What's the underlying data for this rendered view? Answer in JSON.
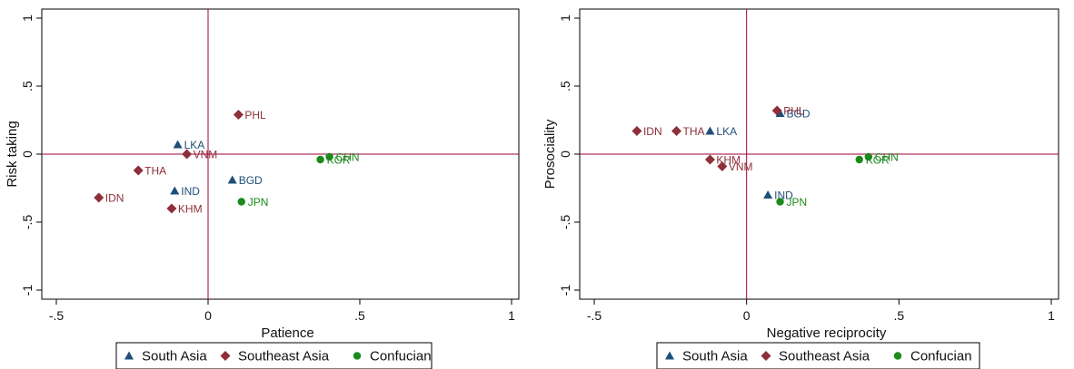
{
  "colors": {
    "South Asia": "#1f4e79",
    "Southeast Asia": "#8e2f3a",
    "Confucian": "#1a8a1a",
    "refline": "#a0003a"
  },
  "legend": [
    "South Asia",
    "Southeast Asia",
    "Confucian"
  ],
  "markers": {
    "South Asia": "triangle",
    "Southeast Asia": "diamond",
    "Confucian": "circle"
  },
  "chart_data": [
    {
      "type": "scatter",
      "xlabel": "Patience",
      "ylabel": "Risk taking",
      "xlim": [
        -0.5,
        1
      ],
      "ylim": [
        -1,
        1
      ],
      "xticks": [
        {
          "v": -0.5,
          "t": "-.5"
        },
        {
          "v": 0,
          "t": "0"
        },
        {
          "v": 0.5,
          "t": ".5"
        },
        {
          "v": 1,
          "t": "1"
        }
      ],
      "yticks": [
        {
          "v": -1,
          "t": "-1"
        },
        {
          "v": -0.5,
          "t": "-.5"
        },
        {
          "v": 0,
          "t": "0"
        },
        {
          "v": 0.5,
          "t": ".5"
        },
        {
          "v": 1,
          "t": "1"
        }
      ],
      "reference_lines": {
        "x": 0,
        "y": 0
      },
      "points": [
        {
          "label": "LKA",
          "group": "South Asia",
          "x": -0.1,
          "y": 0.07
        },
        {
          "label": "IND",
          "group": "South Asia",
          "x": -0.11,
          "y": -0.27
        },
        {
          "label": "BGD",
          "group": "South Asia",
          "x": 0.08,
          "y": -0.19
        },
        {
          "label": "PHL",
          "group": "Southeast Asia",
          "x": 0.1,
          "y": 0.29
        },
        {
          "label": "VNM",
          "group": "Southeast Asia",
          "x": -0.07,
          "y": 0.0
        },
        {
          "label": "THA",
          "group": "Southeast Asia",
          "x": -0.23,
          "y": -0.12
        },
        {
          "label": "IDN",
          "group": "Southeast Asia",
          "x": -0.36,
          "y": -0.32
        },
        {
          "label": "KHM",
          "group": "Southeast Asia",
          "x": -0.12,
          "y": -0.4
        },
        {
          "label": "CHN",
          "group": "Confucian",
          "x": 0.4,
          "y": -0.02
        },
        {
          "label": "KOR",
          "group": "Confucian",
          "x": 0.37,
          "y": -0.04
        },
        {
          "label": "JPN",
          "group": "Confucian",
          "x": 0.11,
          "y": -0.35
        }
      ]
    },
    {
      "type": "scatter",
      "xlabel": "Negative reciprocity",
      "ylabel": "Prosociality",
      "xlim": [
        -0.5,
        1
      ],
      "ylim": [
        -1,
        1
      ],
      "xticks": [
        {
          "v": -0.5,
          "t": "-.5"
        },
        {
          "v": 0,
          "t": "0"
        },
        {
          "v": 0.5,
          "t": ".5"
        },
        {
          "v": 1,
          "t": "1"
        }
      ],
      "yticks": [
        {
          "v": -1,
          "t": "-1"
        },
        {
          "v": -0.5,
          "t": "-.5"
        },
        {
          "v": 0,
          "t": "0"
        },
        {
          "v": 0.5,
          "t": ".5"
        },
        {
          "v": 1,
          "t": "1"
        }
      ],
      "reference_lines": {
        "x": 0,
        "y": 0
      },
      "points": [
        {
          "label": "LKA",
          "group": "South Asia",
          "x": -0.12,
          "y": 0.17
        },
        {
          "label": "BGD",
          "group": "South Asia",
          "x": 0.11,
          "y": 0.3
        },
        {
          "label": "IND",
          "group": "South Asia",
          "x": 0.07,
          "y": -0.3
        },
        {
          "label": "PHL",
          "group": "Southeast Asia",
          "x": 0.1,
          "y": 0.32
        },
        {
          "label": "IDN",
          "group": "Southeast Asia",
          "x": -0.36,
          "y": 0.17
        },
        {
          "label": "THA",
          "group": "Southeast Asia",
          "x": -0.23,
          "y": 0.17
        },
        {
          "label": "KHM",
          "group": "Southeast Asia",
          "x": -0.12,
          "y": -0.04
        },
        {
          "label": "VNM",
          "group": "Southeast Asia",
          "x": -0.08,
          "y": -0.09
        },
        {
          "label": "CHN",
          "group": "Confucian",
          "x": 0.4,
          "y": -0.02
        },
        {
          "label": "KOR",
          "group": "Confucian",
          "x": 0.37,
          "y": -0.04
        },
        {
          "label": "JPN",
          "group": "Confucian",
          "x": 0.11,
          "y": -0.35
        }
      ]
    }
  ]
}
